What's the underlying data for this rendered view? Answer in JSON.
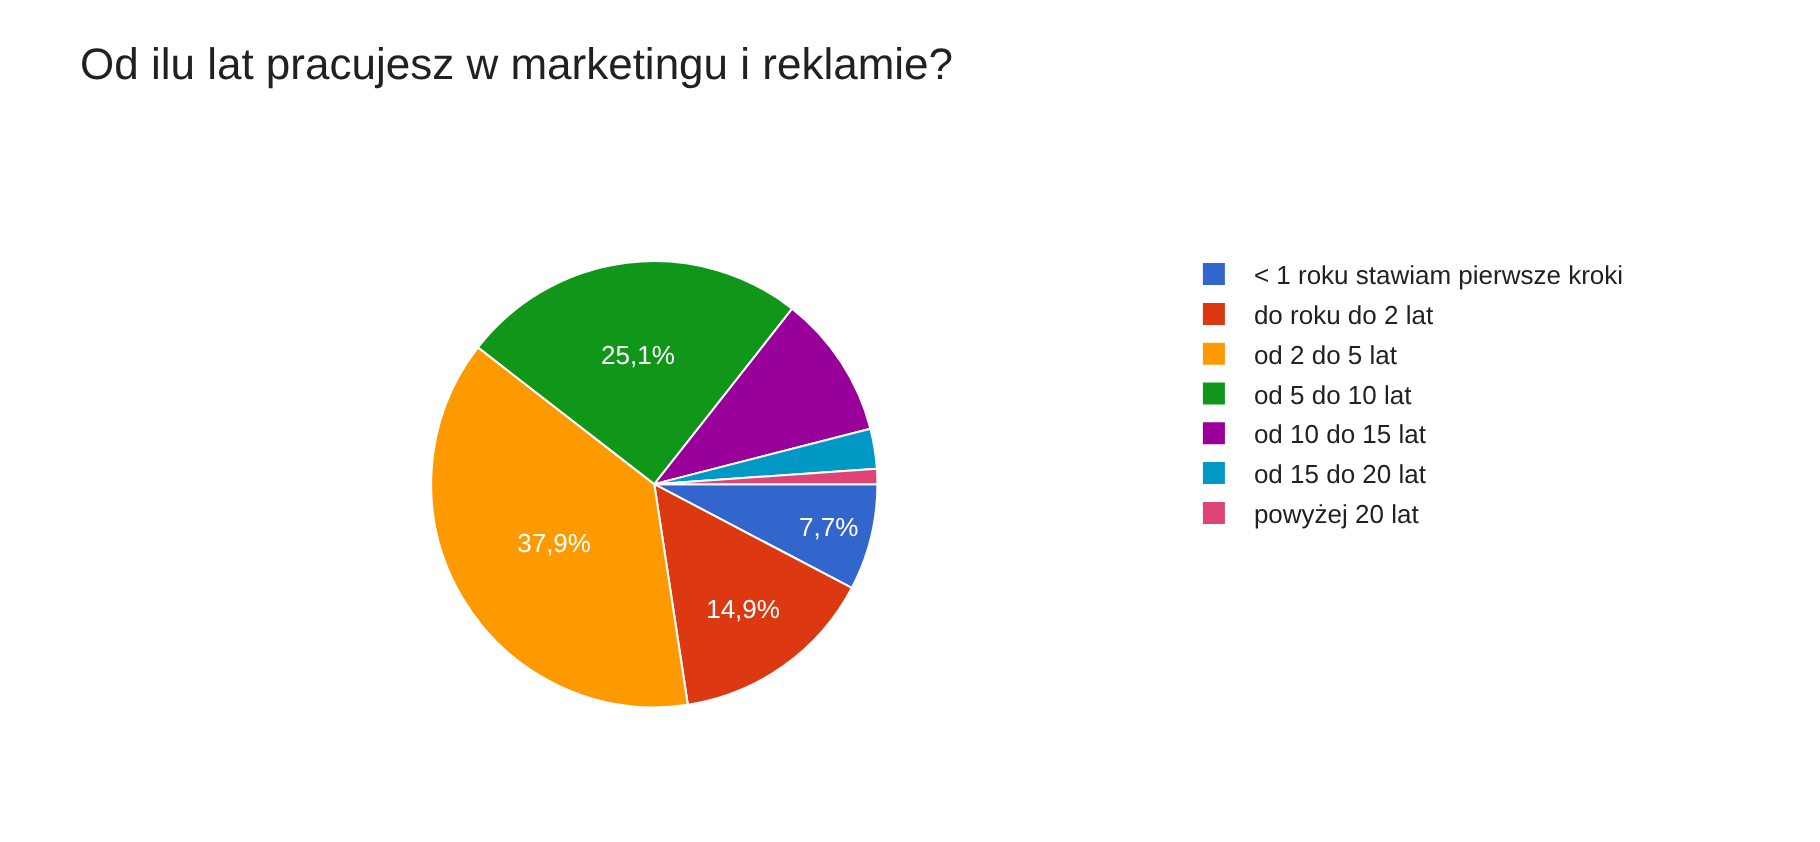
{
  "chart_data": {
    "type": "pie",
    "title": "Od ilu lat pracujesz w marketingu i reklamie?",
    "categories": [
      "< 1 roku stawiam pierwsze kroki",
      "do roku do 2 lat",
      "od 2 do 5 lat",
      "od 5 do 10 lat",
      "od 10 do 15 lat",
      "od 15 do 20 lat",
      "powyżej 20 lat"
    ],
    "values": [
      7.7,
      14.9,
      37.9,
      25.1,
      10.4,
      2.9,
      1.1
    ],
    "value_labels": [
      "7,7%",
      "14,9%",
      "37,9%",
      "25,1%",
      null,
      null,
      null
    ],
    "colors": [
      "#3366cc",
      "#dc3912",
      "#ff9900",
      "#109618",
      "#990099",
      "#0099c6",
      "#dd4477"
    ],
    "legend": "right"
  }
}
